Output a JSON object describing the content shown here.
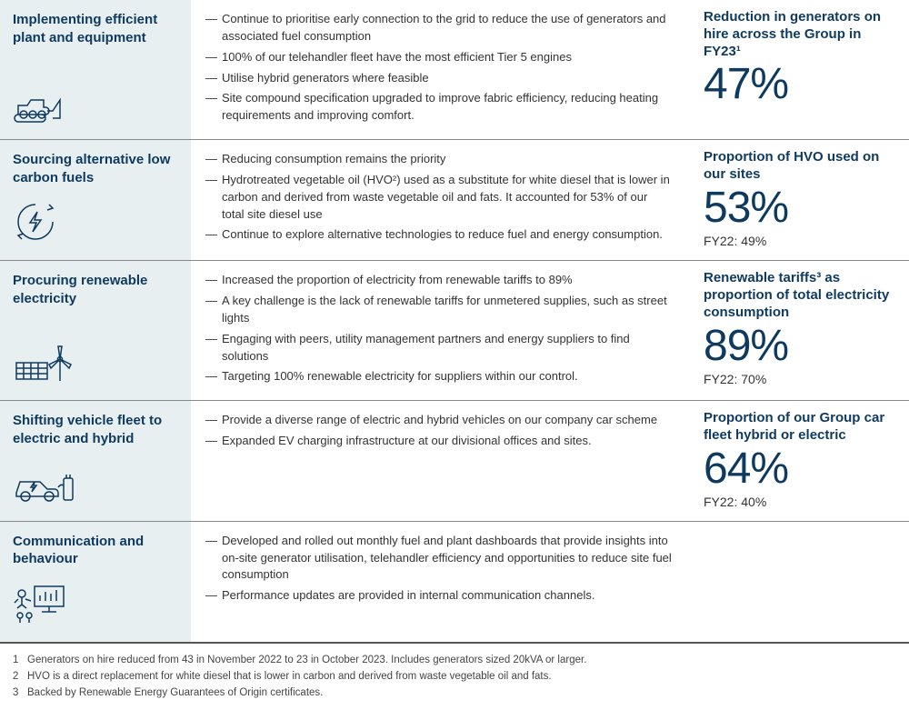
{
  "colors": {
    "primary": "#0f3a5f",
    "leftBg": "#e8eff0",
    "divider": "#888",
    "text": "#333"
  },
  "rows": [
    {
      "title": "Implementing efficient plant and equipment",
      "icon": "bulldozer",
      "bullets": [
        "Continue to prioritise early connection to the grid to reduce the use of generators and associated fuel consumption",
        "100% of our telehandler fleet have the most efficient Tier 5 engines",
        "Utilise hybrid generators where feasible",
        "Site compound specification upgraded to improve fabric efficiency, reducing heating requirements and improving comfort."
      ],
      "stat": {
        "label": "Reduction in generators on hire across the Group in FY23¹",
        "value": "47%",
        "prev": ""
      }
    },
    {
      "title": "Sourcing alternative low carbon fuels",
      "icon": "energy-cycle",
      "bullets": [
        "Reducing consumption remains the priority",
        "Hydrotreated vegetable oil (HVO²) used as a substitute for white diesel that is lower in carbon and derived from waste vegetable oil and fats. It accounted for 53% of our total site diesel use",
        "Continue to explore alternative technologies to reduce fuel and energy consumption."
      ],
      "stat": {
        "label": "Proportion of HVO used on our sites",
        "value": "53%",
        "prev": "FY22: 49%"
      }
    },
    {
      "title": "Procuring renewable electricity",
      "icon": "solar-wind",
      "bullets": [
        "Increased the proportion of electricity from renewable tariffs to 89%",
        "A key challenge is the lack of renewable tariffs for unmetered supplies, such as street lights",
        "Engaging with peers, utility management partners and energy suppliers to find solutions",
        "Targeting 100% renewable electricity for suppliers within our control."
      ],
      "stat": {
        "label": "Renewable tariffs³ as proportion of total electricity consumption",
        "value": "89%",
        "prev": "FY22: 70%"
      }
    },
    {
      "title": "Shifting vehicle fleet to electric and hybrid",
      "icon": "ev-car",
      "bullets": [
        "Provide a diverse range of electric and hybrid vehicles on our company car scheme",
        "Expanded EV charging infrastructure at our divisional offices and sites."
      ],
      "stat": {
        "label": "Proportion of our Group car fleet hybrid or electric",
        "value": "64%",
        "prev": "FY22: 40%"
      }
    },
    {
      "title": "Communication and behaviour",
      "icon": "presentation",
      "bullets": [
        "Developed and rolled out monthly fuel and plant dashboards that provide insights into on-site generator utilisation, telehandler efficiency and opportunities to reduce site fuel consumption",
        "Performance updates are provided in internal communication channels."
      ],
      "stat": null
    }
  ],
  "footnotes": [
    {
      "n": "1",
      "text": "Generators on hire reduced from 43 in November 2022 to 23 in October 2023. Includes generators sized 20kVA or larger."
    },
    {
      "n": "2",
      "text": "HVO is a direct replacement for white diesel that is lower in carbon and derived from waste vegetable oil and fats."
    },
    {
      "n": "3",
      "text": "Backed by Renewable Energy Guarantees of Origin certificates."
    }
  ]
}
